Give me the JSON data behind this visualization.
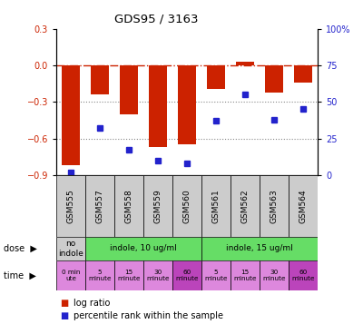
{
  "title": "GDS95 / 3163",
  "samples": [
    "GSM555",
    "GSM557",
    "GSM558",
    "GSM559",
    "GSM560",
    "GSM561",
    "GSM562",
    "GSM563",
    "GSM564"
  ],
  "log_ratio": [
    -0.82,
    -0.24,
    -0.4,
    -0.67,
    -0.65,
    -0.19,
    0.03,
    -0.22,
    -0.14
  ],
  "percentile": [
    2,
    32,
    17,
    10,
    8,
    37,
    55,
    38,
    45
  ],
  "ylim_left": [
    -0.9,
    0.3
  ],
  "ylim_right": [
    0,
    100
  ],
  "yticks_left": [
    -0.9,
    -0.6,
    -0.3,
    0.0,
    0.3
  ],
  "yticks_right": [
    0,
    25,
    50,
    75,
    100
  ],
  "bar_color": "#cc2200",
  "dot_color": "#2222cc",
  "hline_color": "#cc2200",
  "grid_color": "#888888",
  "bg_color": "#ffffff",
  "left_label_color": "#cc2200",
  "right_label_color": "#2222cc",
  "dose_data": [
    [
      0,
      1,
      "#cccccc",
      "no\nindole"
    ],
    [
      1,
      5,
      "#66dd66",
      "indole, 10 ug/ml"
    ],
    [
      5,
      9,
      "#66dd66",
      "indole, 15 ug/ml"
    ]
  ],
  "time_data": [
    [
      0,
      1,
      "#dd88dd",
      "0 min\nute"
    ],
    [
      1,
      2,
      "#dd88dd",
      "5\nminute"
    ],
    [
      2,
      3,
      "#dd88dd",
      "15\nminute"
    ],
    [
      3,
      4,
      "#dd88dd",
      "30\nminute"
    ],
    [
      4,
      5,
      "#bb44bb",
      "60\nminute"
    ],
    [
      5,
      6,
      "#dd88dd",
      "5\nminute"
    ],
    [
      6,
      7,
      "#dd88dd",
      "15\nminute"
    ],
    [
      7,
      8,
      "#dd88dd",
      "30\nminute"
    ],
    [
      8,
      9,
      "#bb44bb",
      "60\nminute"
    ]
  ],
  "sample_bg": "#cccccc",
  "legend_items": [
    {
      "color": "#cc2200",
      "label": "log ratio"
    },
    {
      "color": "#2222cc",
      "label": "percentile rank within the sample"
    }
  ]
}
